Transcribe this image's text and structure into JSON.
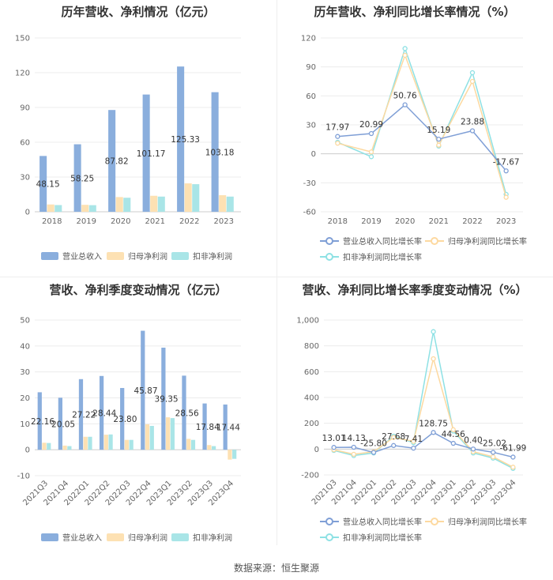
{
  "source": "数据来源：恒生聚源",
  "colors": {
    "revenue": "#8aaedd",
    "net": "#fde1b3",
    "deducted": "#a9e5e7",
    "rev_line": "#7f9fd6",
    "net_line": "#fdd9a0",
    "ded_line": "#8ee1e4"
  },
  "chart_data": [
    {
      "type": "bar",
      "title": "历年营收、净利情况（亿元）",
      "categories": [
        "2018",
        "2019",
        "2020",
        "2021",
        "2022",
        "2023"
      ],
      "ylim": [
        0,
        150
      ],
      "yticks": [
        0,
        30,
        60,
        90,
        120,
        150
      ],
      "series": [
        {
          "name": "营业总收入",
          "values": [
            48.15,
            58.25,
            87.82,
            101.17,
            125.33,
            103.18
          ]
        },
        {
          "name": "归母净利润",
          "values": [
            6.3,
            6.0,
            12.7,
            13.8,
            24.5,
            14.3
          ]
        },
        {
          "name": "扣非净利润",
          "values": [
            5.8,
            5.7,
            12.1,
            13.1,
            23.8,
            13.1
          ]
        }
      ],
      "labels": [
        "48.15",
        "58.25",
        "87.82",
        "101.17",
        "125.33",
        "103.18"
      ]
    },
    {
      "type": "line",
      "title": "历年营收、净利同比增长率情况（%）",
      "categories": [
        "2018",
        "2019",
        "2020",
        "2021",
        "2022",
        "2023"
      ],
      "ylim": [
        -60,
        120
      ],
      "yticks": [
        -60,
        -30,
        0,
        30,
        60,
        90,
        120
      ],
      "series": [
        {
          "name": "营业总收入同比增长率",
          "values": [
            17.97,
            20.99,
            50.76,
            15.19,
            23.88,
            -17.67
          ]
        },
        {
          "name": "归母净利润同比增长率",
          "values": [
            11,
            2,
            102,
            9,
            75,
            -45
          ]
        },
        {
          "name": "扣非净利润同比增长率",
          "values": [
            12,
            -3,
            109,
            8,
            84,
            -42
          ]
        }
      ],
      "labels": [
        "17.97",
        "20.99",
        "50.76",
        "15.19",
        "23.88",
        "-17.67"
      ]
    },
    {
      "type": "bar",
      "title": "营收、净利季度变动情况（亿元）",
      "categories": [
        "2021Q3",
        "2021Q4",
        "2022Q1",
        "2022Q2",
        "2022Q3",
        "2022Q4",
        "2023Q1",
        "2023Q2",
        "2023Q3",
        "2023Q4"
      ],
      "ylim": [
        -10,
        50
      ],
      "yticks": [
        -10,
        0,
        10,
        20,
        30,
        40,
        50
      ],
      "series": [
        {
          "name": "营业总收入",
          "values": [
            22.16,
            20.05,
            27.22,
            28.44,
            23.8,
            45.87,
            39.35,
            28.56,
            17.84,
            17.44
          ]
        },
        {
          "name": "归母净利润",
          "values": [
            2.7,
            1.6,
            5.0,
            5.8,
            3.8,
            9.8,
            12.5,
            4.2,
            1.8,
            -3.8
          ]
        },
        {
          "name": "扣非净利润",
          "values": [
            2.6,
            1.4,
            5.0,
            5.9,
            3.8,
            9.2,
            12.2,
            3.8,
            1.4,
            -3.5
          ]
        }
      ],
      "labels": [
        "22.16",
        "20.05",
        "27.22",
        "28.44",
        "23.80",
        "45.87",
        "39.35",
        "28.56",
        "17.84",
        "17.44"
      ]
    },
    {
      "type": "line",
      "title": "营收、净利同比增长率季度变动情况（%）",
      "categories": [
        "2021Q3",
        "2021Q4",
        "2022Q1",
        "2022Q2",
        "2022Q3",
        "2022Q4",
        "2023Q1",
        "2023Q2",
        "2023Q3",
        "2023Q4"
      ],
      "ylim": [
        -200,
        1000
      ],
      "yticks": [
        -200,
        0,
        200,
        400,
        600,
        800,
        1000
      ],
      "ytick_labels": [
        "-200",
        "0",
        "200",
        "400",
        "600",
        "800",
        "1,000"
      ],
      "series": [
        {
          "name": "营业总收入同比增长率",
          "values": [
            13.01,
            14.13,
            -25.8,
            27.68,
            7.41,
            128.75,
            44.56,
            0.4,
            -25.02,
            -61.99
          ]
        },
        {
          "name": "归母净利润同比增长率",
          "values": [
            -5,
            -40,
            -20,
            90,
            60,
            700,
            150,
            -20,
            -60,
            -140
          ]
        },
        {
          "name": "扣非净利润同比增长率",
          "values": [
            -10,
            -50,
            -30,
            100,
            50,
            910,
            140,
            -30,
            -70,
            -150
          ]
        }
      ],
      "labels": [
        "13.01",
        "14.13",
        "-25.80",
        "27.68",
        "7.41",
        "128.75",
        "44.56",
        "0.40",
        "-25.02",
        "-61.99"
      ]
    }
  ]
}
